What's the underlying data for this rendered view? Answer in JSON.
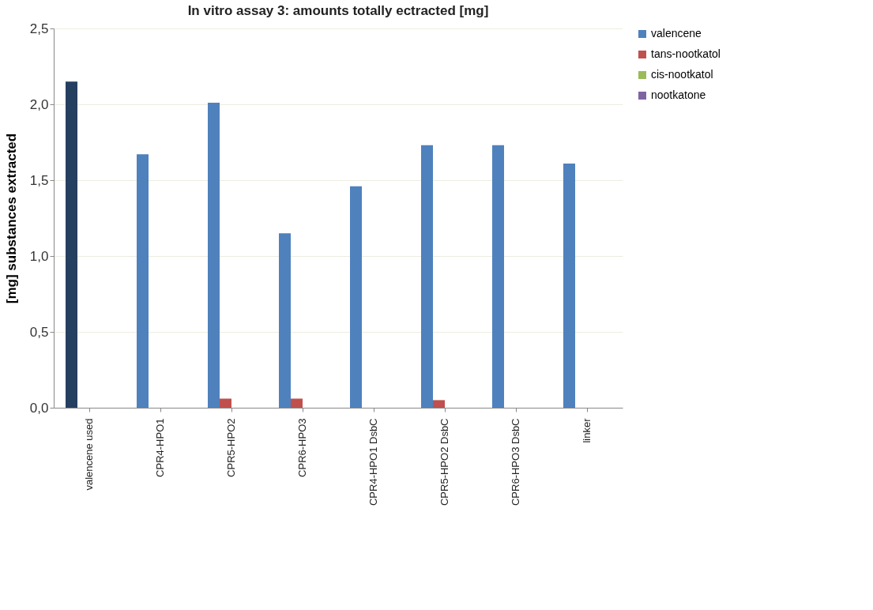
{
  "chart_data": {
    "type": "bar",
    "title": "In vitro assay 3: amounts totally ectracted [mg]",
    "ylabel": "[mg] substances extracted",
    "categories": [
      "valencene used",
      "CPR4-HPO1",
      "CPR5-HPO2",
      "CPR6-HPO3",
      "CPR4-HPO1 DsbC",
      "CPR5-HPO2 DsbC",
      "CPR6-HPO3 DsbC",
      "linker"
    ],
    "series": [
      {
        "name": "valencene",
        "color": "#4f81bd",
        "colors": [
          "#253f60",
          "#4f81bd",
          "#4f81bd",
          "#4f81bd",
          "#4f81bd",
          "#4f81bd",
          "#4f81bd",
          "#4f81bd"
        ],
        "values": [
          2.15,
          1.67,
          2.01,
          1.15,
          1.46,
          1.73,
          1.73,
          1.61
        ]
      },
      {
        "name": "tans-nootkatol",
        "color": "#c0504d",
        "values": [
          0,
          0,
          0.06,
          0.06,
          0,
          0.05,
          0,
          0
        ]
      },
      {
        "name": "cis-nootkatol",
        "color": "#9bbb59",
        "values": [
          0,
          0,
          0,
          0,
          0,
          0,
          0,
          0
        ]
      },
      {
        "name": "nootkatone",
        "color": "#8064a2",
        "values": [
          0,
          0,
          0,
          0,
          0,
          0,
          0,
          0
        ]
      }
    ],
    "ylim": [
      0,
      2.5
    ],
    "yticks": [
      {
        "value": 0,
        "label": "0,0"
      },
      {
        "value": 0.5,
        "label": "0,5"
      },
      {
        "value": 1,
        "label": "1,0"
      },
      {
        "value": 1.5,
        "label": "1,5"
      },
      {
        "value": 2,
        "label": "2,0"
      },
      {
        "value": 2.5,
        "label": "2,5"
      }
    ],
    "grid": "y",
    "legend": "right"
  }
}
